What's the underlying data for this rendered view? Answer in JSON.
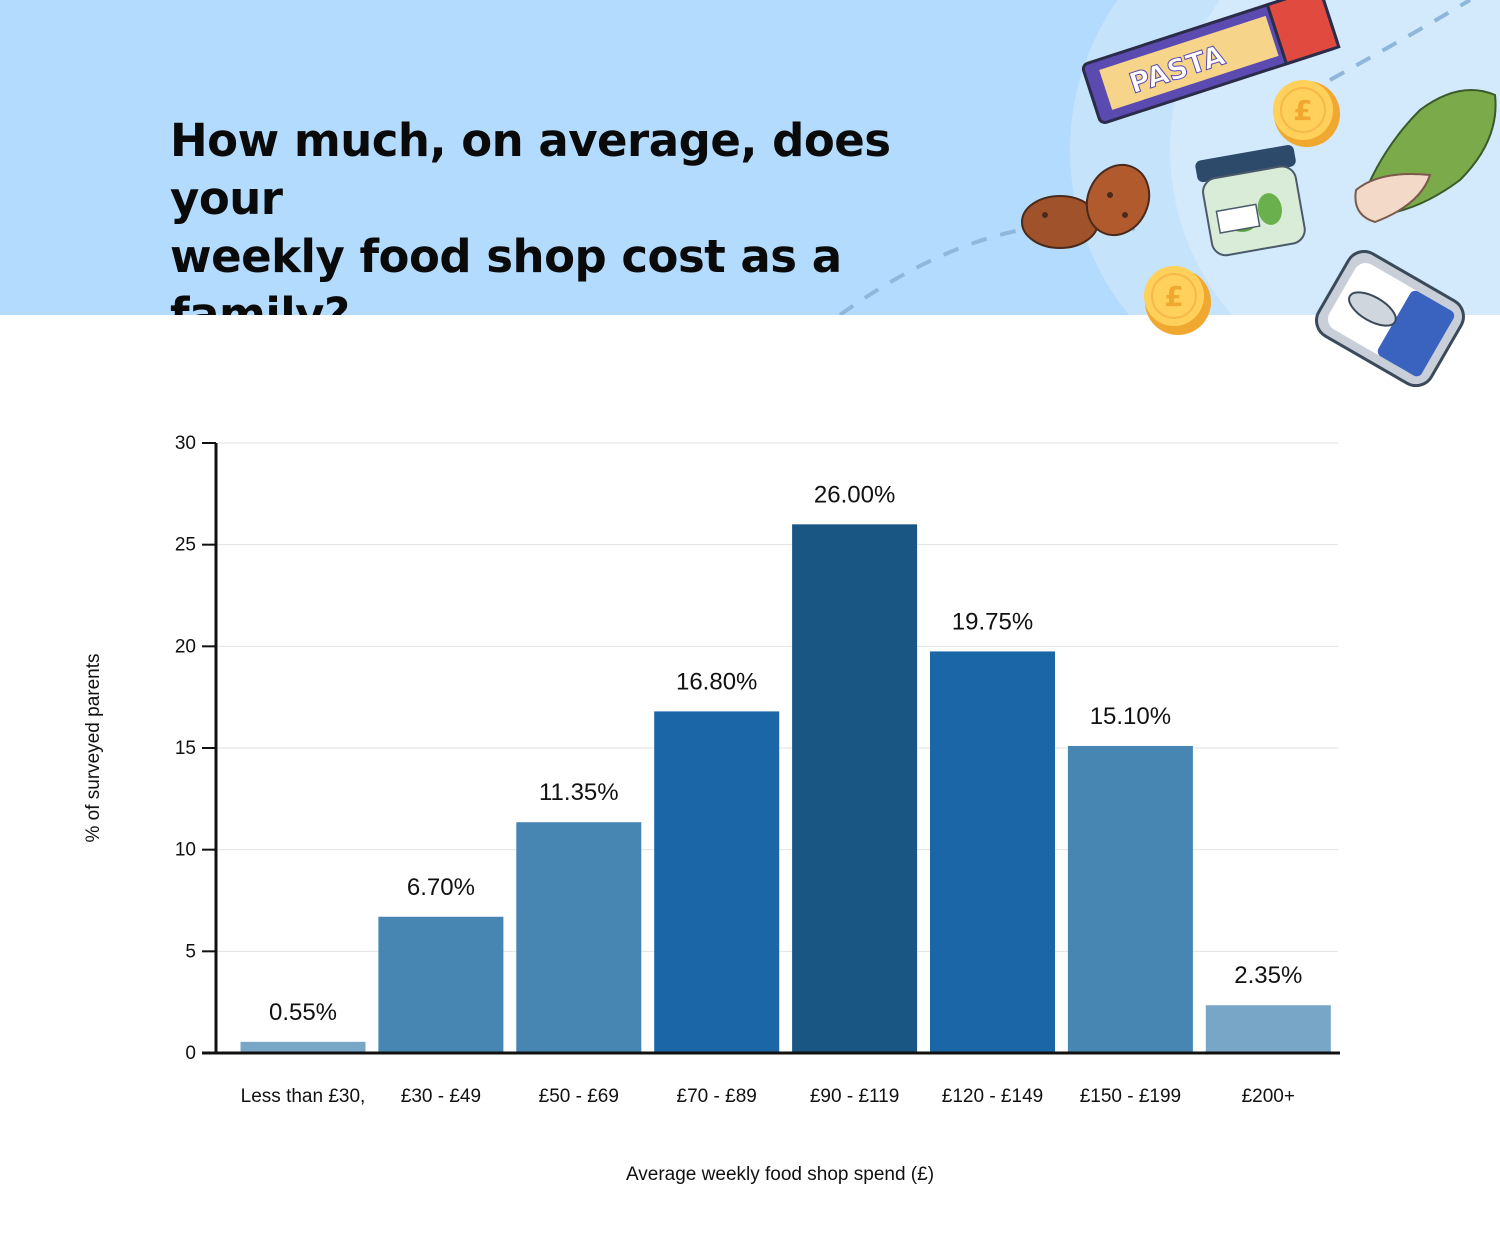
{
  "header": {
    "title_line1": "How much, on average, does your",
    "title_line2": "weekly food shop cost as a family?",
    "background": "#b3dbfd"
  },
  "illustrations": {
    "pasta_box_text": "PASTA",
    "coin_symbol": "£",
    "icons": [
      "pasta-box-icon",
      "coin-icon",
      "potato-icon",
      "pickle-jar-icon",
      "bok-choy-icon",
      "fish-tin-icon"
    ]
  },
  "chart_data": {
    "type": "bar",
    "title": "How much, on average, does your weekly food shop cost as a family?",
    "xlabel": "Average weekly food shop spend (£)",
    "ylabel": "% of surveyed parents",
    "ylim": [
      0,
      30
    ],
    "yticks": [
      0,
      5,
      10,
      15,
      20,
      25,
      30
    ],
    "grid": true,
    "categories": [
      "Less than £30,",
      "£30 - £49",
      "£50 - £69",
      "£70 - £89",
      "£90 - £119",
      "£120 - £149",
      "£150 - £199",
      "£200+"
    ],
    "values": [
      0.55,
      6.7,
      11.35,
      16.8,
      26.0,
      19.75,
      15.1,
      2.35
    ],
    "value_labels": [
      "0.55%",
      "6.70%",
      "11.35%",
      "16.80%",
      "26.00%",
      "19.75%",
      "15.10%",
      "2.35%"
    ],
    "colors": [
      "#78a6c6",
      "#4786b3",
      "#4786b3",
      "#1b66a6",
      "#195683",
      "#1b66a6",
      "#4786b3",
      "#78a6c6"
    ]
  }
}
